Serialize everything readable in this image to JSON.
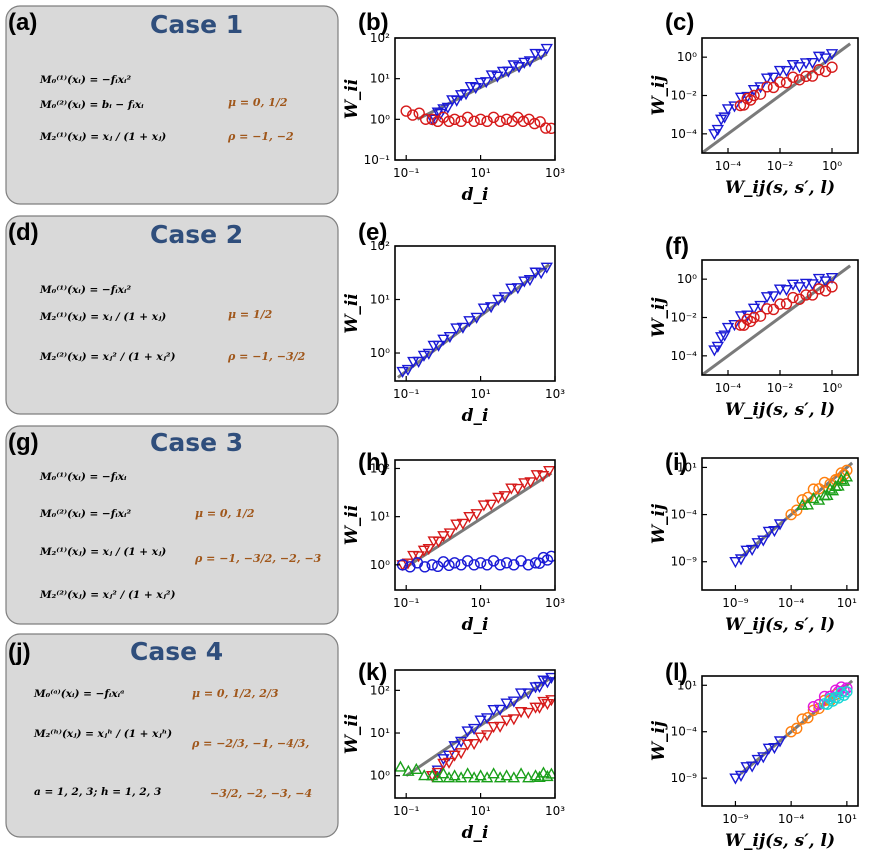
{
  "cases": [
    {
      "id": "a",
      "title": "Case 1",
      "equations": [
        "M₀⁽¹⁾(xᵢ) = −fᵢxᵢ²",
        "M₀⁽²⁾(xᵢ) = bᵢ − fᵢxᵢ",
        "M₂⁽¹⁾(xⱼ) = xⱼ / (1 + xⱼ)"
      ],
      "params": [
        "μ = 0, 1/2",
        "ρ = −1, −2"
      ]
    },
    {
      "id": "d",
      "title": "Case 2",
      "equations": [
        "M₀⁽¹⁾(xᵢ) = −fᵢxᵢ²",
        "M₂⁽¹⁾(xⱼ) = xⱼ / (1 + xⱼ)",
        "M₂⁽²⁾(xⱼ) = xⱼ² / (1 + xⱼ²)"
      ],
      "params": [
        "μ = 1/2",
        "ρ = −1, −3/2"
      ]
    },
    {
      "id": "g",
      "title": "Case 3",
      "equations": [
        "M₀⁽¹⁾(xᵢ) = −fᵢxᵢ",
        "M₀⁽²⁾(xᵢ) = −fᵢxᵢ²",
        "M₂⁽¹⁾(xⱼ) = xⱼ / (1 + xⱼ)",
        "M₂⁽²⁾(xⱼ) = xⱼ² / (1 + xⱼ²)"
      ],
      "params": [
        "μ = 0, 1/2",
        "ρ = −1, −3/2, −2, −3"
      ]
    },
    {
      "id": "j",
      "title": "Case 4",
      "equations": [
        "M₀⁽ᵃ⁾(xᵢ) = −fᵢxᵢᵃ",
        "M₂⁽ʰ⁾(xⱼ) = xⱼʰ / (1 + xⱼʰ)",
        "a = 1, 2, 3;  h = 1, 2, 3"
      ],
      "params": [
        "μ = 0, 1/2, 2/3",
        "ρ = −2/3, −1, −4/3,",
        "−3/2, −2, −3, −4"
      ]
    }
  ],
  "chart_data": [
    {
      "id": "b",
      "type": "scatter",
      "ylabel": "W_ii",
      "xlabel": "d_i",
      "xticks": [
        "10⁻¹",
        "10¹",
        "10³"
      ],
      "yticks": [
        "10⁻¹",
        "10⁰",
        "10¹",
        "10²"
      ],
      "xlim": [
        0.05,
        1000
      ],
      "ylim": [
        0.1,
        100
      ],
      "theory": [
        [
          0.2,
          1
        ],
        [
          600,
          40
        ]
      ],
      "series": [
        {
          "name": "blue",
          "color": "#1a1ad6",
          "marker": "inv-triangle",
          "points": [
            [
              0.5,
              1
            ],
            [
              1,
              1.8
            ],
            [
              3,
              4
            ],
            [
              10,
              8
            ],
            [
              40,
              15
            ],
            [
              150,
              25
            ],
            [
              600,
              55
            ]
          ]
        },
        {
          "name": "red",
          "color": "#d61a1a",
          "marker": "circle",
          "points": [
            [
              0.1,
              1.6
            ],
            [
              0.5,
              1
            ],
            [
              2,
              1
            ],
            [
              10,
              1
            ],
            [
              50,
              1
            ],
            [
              200,
              1
            ],
            [
              800,
              0.6
            ]
          ]
        }
      ]
    },
    {
      "id": "c",
      "type": "scatter",
      "ylabel": "W_ij",
      "xlabel": "W_ij(s, s′, l)",
      "xticks": [
        "10⁻⁴",
        "10⁻²",
        "10⁰"
      ],
      "yticks": [
        "10⁻⁴",
        "10⁻²",
        "10⁰"
      ],
      "xlim": [
        1e-05,
        10
      ],
      "ylim": [
        1e-05,
        10
      ],
      "theory": [
        [
          3e-06,
          3e-06
        ],
        [
          5,
          5
        ]
      ],
      "series": [
        {
          "name": "blue",
          "color": "#1a1ad6",
          "marker": "inv-triangle",
          "points": [
            [
              3e-05,
              0.0001
            ],
            [
              0.0001,
              0.002
            ],
            [
              0.001,
              0.02
            ],
            [
              0.01,
              0.2
            ],
            [
              0.1,
              0.5
            ],
            [
              1,
              1.5
            ]
          ]
        },
        {
          "name": "red",
          "color": "#d61a1a",
          "marker": "circle",
          "points": [
            [
              0.0003,
              0.003
            ],
            [
              0.001,
              0.01
            ],
            [
              0.01,
              0.05
            ],
            [
              0.1,
              0.1
            ],
            [
              1,
              0.3
            ]
          ]
        }
      ]
    },
    {
      "id": "e",
      "type": "scatter",
      "ylabel": "W_ii",
      "xlabel": "d_i",
      "xticks": [
        "10⁻¹",
        "10¹",
        "10³"
      ],
      "yticks": [
        "10⁰",
        "10¹",
        "10²"
      ],
      "xlim": [
        0.05,
        1000
      ],
      "ylim": [
        0.3,
        100
      ],
      "theory": [
        [
          0.06,
          0.35
        ],
        [
          700,
          45
        ]
      ],
      "series": [
        {
          "name": "blue",
          "color": "#1a1ad6",
          "marker": "inv-triangle",
          "points": [
            [
              0.08,
              0.45
            ],
            [
              0.3,
              0.9
            ],
            [
              1,
              1.8
            ],
            [
              5,
              4
            ],
            [
              30,
              10
            ],
            [
              150,
              22
            ],
            [
              600,
              40
            ]
          ]
        }
      ]
    },
    {
      "id": "f",
      "type": "scatter",
      "ylabel": "W_ij",
      "xlabel": "W_ij(s, s′, l)",
      "xticks": [
        "10⁻⁴",
        "10⁻²",
        "10⁰"
      ],
      "yticks": [
        "10⁻⁴",
        "10⁻²",
        "10⁰"
      ],
      "xlim": [
        1e-05,
        10
      ],
      "ylim": [
        1e-05,
        10
      ],
      "theory": [
        [
          3e-06,
          3e-06
        ],
        [
          5,
          5
        ]
      ],
      "series": [
        {
          "name": "blue",
          "color": "#1a1ad6",
          "marker": "inv-triangle",
          "points": [
            [
              3e-05,
              0.0002
            ],
            [
              0.0001,
              0.003
            ],
            [
              0.001,
              0.03
            ],
            [
              0.01,
              0.3
            ],
            [
              0.1,
              0.6
            ],
            [
              1,
              1.2
            ]
          ]
        },
        {
          "name": "red",
          "color": "#d61a1a",
          "marker": "circle",
          "points": [
            [
              0.0003,
              0.004
            ],
            [
              0.001,
              0.01
            ],
            [
              0.01,
              0.05
            ],
            [
              0.1,
              0.15
            ],
            [
              1,
              0.4
            ]
          ]
        }
      ]
    },
    {
      "id": "h",
      "type": "scatter",
      "ylabel": "W_ii",
      "xlabel": "d_i",
      "xticks": [
        "10⁻¹",
        "10¹",
        "10³"
      ],
      "yticks": [
        "10⁰",
        "10¹",
        "10²"
      ],
      "xlim": [
        0.05,
        1000
      ],
      "ylim": [
        0.3,
        150
      ],
      "theory": [
        [
          0.1,
          0.9
        ],
        [
          800,
          80
        ]
      ],
      "series": [
        {
          "name": "red",
          "color": "#d61a1a",
          "marker": "inv-triangle",
          "points": [
            [
              0.08,
              1
            ],
            [
              0.3,
              2
            ],
            [
              1,
              4
            ],
            [
              5,
              10
            ],
            [
              30,
              25
            ],
            [
              150,
              50
            ],
            [
              700,
              90
            ]
          ]
        },
        {
          "name": "blue",
          "color": "#1a1ad6",
          "marker": "circle",
          "points": [
            [
              0.08,
              1
            ],
            [
              0.5,
              1
            ],
            [
              2,
              1.1
            ],
            [
              10,
              1.1
            ],
            [
              50,
              1.1
            ],
            [
              300,
              1.1
            ],
            [
              800,
              1.5
            ]
          ]
        }
      ]
    },
    {
      "id": "i",
      "type": "scatter",
      "ylabel": "W_ij",
      "xlabel": "W_ij(s, s′, l)",
      "xticks": [
        "10⁻⁹",
        "10⁻⁴",
        "10¹"
      ],
      "yticks": [
        "10⁻⁹",
        "10⁻⁴",
        "10¹"
      ],
      "xlim": [
        1e-12,
        100
      ],
      "ylim": [
        1e-12,
        100
      ],
      "theory": [
        [
          3e-09,
          3e-09
        ],
        [
          30,
          30
        ]
      ],
      "series": [
        {
          "name": "blue",
          "color": "#1a1ad6",
          "marker": "inv-triangle",
          "points": [
            [
              1e-09,
              1e-09
            ],
            [
              1e-07,
              1e-07
            ],
            [
              1e-05,
              1e-05
            ]
          ]
        },
        {
          "name": "orange",
          "color": "#ff7f0e",
          "marker": "circle",
          "points": [
            [
              0.0001,
              0.0001
            ],
            [
              0.01,
              0.05
            ],
            [
              1,
              0.5
            ],
            [
              10,
              5
            ]
          ]
        },
        {
          "name": "green",
          "color": "#1aa01a",
          "marker": "triangle",
          "points": [
            [
              0.001,
              0.001
            ],
            [
              0.1,
              0.01
            ],
            [
              1,
              0.1
            ],
            [
              10,
              1
            ]
          ]
        }
      ]
    },
    {
      "id": "k",
      "type": "scatter",
      "ylabel": "W_ii",
      "xlabel": "d_i",
      "xticks": [
        "10⁻¹",
        "10¹",
        "10³"
      ],
      "yticks": [
        "10⁰",
        "10¹",
        "10²"
      ],
      "xlim": [
        0.05,
        1000
      ],
      "ylim": [
        0.3,
        300
      ],
      "theory": [
        [
          0.1,
          1
        ],
        [
          800,
          200
        ]
      ],
      "series": [
        {
          "name": "blue",
          "color": "#1a1ad6",
          "marker": "inv-triangle",
          "points": [
            [
              0.5,
              1
            ],
            [
              2,
              5
            ],
            [
              10,
              20
            ],
            [
              50,
              50
            ],
            [
              300,
              120
            ],
            [
              800,
              200
            ]
          ]
        },
        {
          "name": "red",
          "color": "#d61a1a",
          "marker": "inv-triangle",
          "points": [
            [
              0.5,
              1
            ],
            [
              2,
              3
            ],
            [
              10,
              8
            ],
            [
              50,
              20
            ],
            [
              300,
              40
            ],
            [
              800,
              60
            ]
          ]
        },
        {
          "name": "green",
          "color": "#1aa01a",
          "marker": "triangle",
          "points": [
            [
              0.07,
              1.6
            ],
            [
              0.5,
              1
            ],
            [
              2,
              1
            ],
            [
              10,
              1
            ],
            [
              50,
              1
            ],
            [
              300,
              1
            ],
            [
              800,
              1.1
            ]
          ]
        }
      ]
    },
    {
      "id": "l",
      "type": "scatter",
      "ylabel": "W_ij",
      "xlabel": "W_ij(s, s′, l)",
      "xticks": [
        "10⁻⁹",
        "10⁻⁴",
        "10¹"
      ],
      "yticks": [
        "10⁻⁹",
        "10⁻⁴",
        "10¹"
      ],
      "xlim": [
        1e-12,
        100
      ],
      "ylim": [
        1e-12,
        100
      ],
      "theory": [
        [
          3e-09,
          3e-09
        ],
        [
          30,
          30
        ]
      ],
      "series": [
        {
          "name": "blue",
          "color": "#1a1ad6",
          "marker": "inv-triangle",
          "points": [
            [
              1e-09,
              1e-09
            ],
            [
              1e-07,
              1e-07
            ],
            [
              1e-05,
              1e-05
            ]
          ]
        },
        {
          "name": "orange",
          "color": "#ff7f0e",
          "marker": "circle",
          "points": [
            [
              0.0001,
              0.0001
            ],
            [
              0.01,
              0.02
            ],
            [
              1,
              1
            ]
          ]
        },
        {
          "name": "magenta",
          "color": "#e01ae0",
          "marker": "circle",
          "points": [
            [
              0.01,
              0.05
            ],
            [
              1,
              3
            ],
            [
              10,
              5
            ]
          ]
        },
        {
          "name": "cyan",
          "color": "#1ad6d6",
          "marker": "circle",
          "points": [
            [
              0.1,
              0.1
            ],
            [
              1,
              0.5
            ],
            [
              10,
              2
            ]
          ]
        }
      ]
    }
  ]
}
